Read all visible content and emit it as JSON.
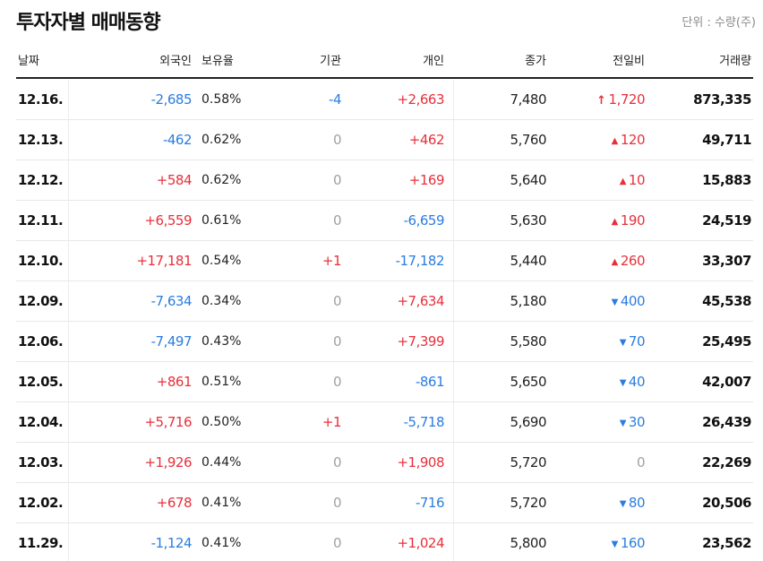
{
  "title": "투자자별 매매동향",
  "unit": "단위 : 수량(주)",
  "columns": {
    "date": "날짜",
    "foreign": "외국인",
    "holding": "보유율",
    "institution": "기관",
    "individual": "개인",
    "close": "종가",
    "change": "전일비",
    "volume": "거래량"
  },
  "colors": {
    "up": "#e8303b",
    "down": "#2b7de0",
    "flat": "#a0a0a0"
  },
  "rows": [
    {
      "date": "12.16.",
      "foreign": "-2,685",
      "foreign_dir": "down",
      "holding": "0.58%",
      "institution": "-4",
      "institution_dir": "down",
      "individual": "+2,663",
      "individual_dir": "up",
      "close": "7,480",
      "change": "1,720",
      "change_dir": "upper",
      "volume": "873,335"
    },
    {
      "date": "12.13.",
      "foreign": "-462",
      "foreign_dir": "down",
      "holding": "0.62%",
      "institution": "0",
      "institution_dir": "flat",
      "individual": "+462",
      "individual_dir": "up",
      "close": "5,760",
      "change": "120",
      "change_dir": "up",
      "volume": "49,711"
    },
    {
      "date": "12.12.",
      "foreign": "+584",
      "foreign_dir": "up",
      "holding": "0.62%",
      "institution": "0",
      "institution_dir": "flat",
      "individual": "+169",
      "individual_dir": "up",
      "close": "5,640",
      "change": "10",
      "change_dir": "up",
      "volume": "15,883"
    },
    {
      "date": "12.11.",
      "foreign": "+6,559",
      "foreign_dir": "up",
      "holding": "0.61%",
      "institution": "0",
      "institution_dir": "flat",
      "individual": "-6,659",
      "individual_dir": "down",
      "close": "5,630",
      "change": "190",
      "change_dir": "up",
      "volume": "24,519"
    },
    {
      "date": "12.10.",
      "foreign": "+17,181",
      "foreign_dir": "up",
      "holding": "0.54%",
      "institution": "+1",
      "institution_dir": "up",
      "individual": "-17,182",
      "individual_dir": "down",
      "close": "5,440",
      "change": "260",
      "change_dir": "up",
      "volume": "33,307"
    },
    {
      "date": "12.09.",
      "foreign": "-7,634",
      "foreign_dir": "down",
      "holding": "0.34%",
      "institution": "0",
      "institution_dir": "flat",
      "individual": "+7,634",
      "individual_dir": "up",
      "close": "5,180",
      "change": "400",
      "change_dir": "down",
      "volume": "45,538"
    },
    {
      "date": "12.06.",
      "foreign": "-7,497",
      "foreign_dir": "down",
      "holding": "0.43%",
      "institution": "0",
      "institution_dir": "flat",
      "individual": "+7,399",
      "individual_dir": "up",
      "close": "5,580",
      "change": "70",
      "change_dir": "down",
      "volume": "25,495"
    },
    {
      "date": "12.05.",
      "foreign": "+861",
      "foreign_dir": "up",
      "holding": "0.51%",
      "institution": "0",
      "institution_dir": "flat",
      "individual": "-861",
      "individual_dir": "down",
      "close": "5,650",
      "change": "40",
      "change_dir": "down",
      "volume": "42,007"
    },
    {
      "date": "12.04.",
      "foreign": "+5,716",
      "foreign_dir": "up",
      "holding": "0.50%",
      "institution": "+1",
      "institution_dir": "up",
      "individual": "-5,718",
      "individual_dir": "down",
      "close": "5,690",
      "change": "30",
      "change_dir": "down",
      "volume": "26,439"
    },
    {
      "date": "12.03.",
      "foreign": "+1,926",
      "foreign_dir": "up",
      "holding": "0.44%",
      "institution": "0",
      "institution_dir": "flat",
      "individual": "+1,908",
      "individual_dir": "up",
      "close": "5,720",
      "change": "0",
      "change_dir": "flat",
      "volume": "22,269"
    },
    {
      "date": "12.02.",
      "foreign": "+678",
      "foreign_dir": "up",
      "holding": "0.41%",
      "institution": "0",
      "institution_dir": "flat",
      "individual": "-716",
      "individual_dir": "down",
      "close": "5,720",
      "change": "80",
      "change_dir": "down",
      "volume": "20,506"
    },
    {
      "date": "11.29.",
      "foreign": "-1,124",
      "foreign_dir": "down",
      "holding": "0.41%",
      "institution": "0",
      "institution_dir": "flat",
      "individual": "+1,024",
      "individual_dir": "up",
      "close": "5,800",
      "change": "160",
      "change_dir": "down",
      "volume": "23,562"
    }
  ]
}
